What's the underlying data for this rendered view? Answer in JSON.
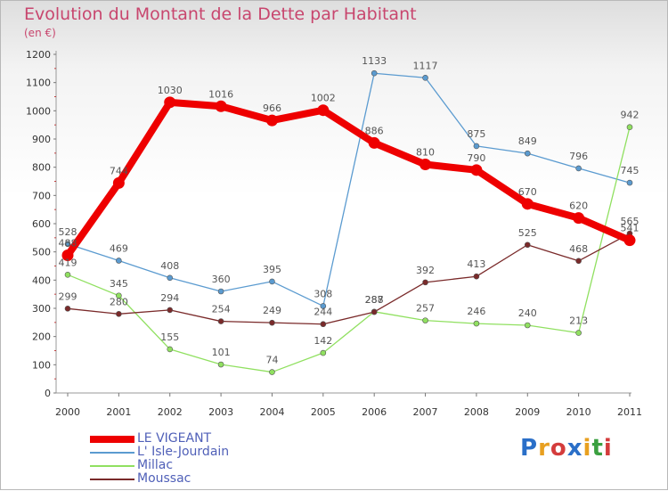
{
  "title": "Evolution du Montant de la Dette par Habitant",
  "unit": "(en €)",
  "logo": {
    "text": "Proxiti",
    "colors": [
      "#2a6fc8",
      "#e8a020",
      "#d43c3c",
      "#2a6fc8",
      "#e8a020",
      "#3aa040",
      "#d43c3c"
    ]
  },
  "chart_data": {
    "type": "line",
    "title": "Evolution du Montant de la Dette par Habitant",
    "ylabel": "(en €)",
    "x": [
      "2000",
      "2001",
      "2002",
      "2003",
      "2004",
      "2005",
      "2006",
      "2007",
      "2008",
      "2009",
      "2010",
      "2011"
    ],
    "ylim": [
      0,
      1200
    ],
    "yticks": [
      0,
      100,
      200,
      300,
      400,
      500,
      600,
      700,
      800,
      900,
      1000,
      1100,
      1200
    ],
    "grid": false,
    "legend_position": "bottom-left",
    "series": [
      {
        "name": "LE VIGEANT",
        "color": "#ee0000",
        "values": [
          488,
          744,
          1030,
          1016,
          966,
          1002,
          886,
          810,
          790,
          670,
          620,
          541
        ]
      },
      {
        "name": "L' Isle-Jourdain",
        "color": "#5b9bd0",
        "values": [
          528,
          469,
          408,
          360,
          395,
          308,
          1133,
          1117,
          875,
          849,
          796,
          745
        ]
      },
      {
        "name": "Millac",
        "color": "#90e060",
        "values": [
          419,
          345,
          155,
          101,
          74,
          142,
          288,
          257,
          246,
          240,
          213,
          942
        ]
      },
      {
        "name": "Moussac",
        "color": "#7a2a2a",
        "values": [
          299,
          280,
          294,
          254,
          249,
          244,
          287,
          392,
          413,
          525,
          468,
          565
        ]
      }
    ]
  }
}
